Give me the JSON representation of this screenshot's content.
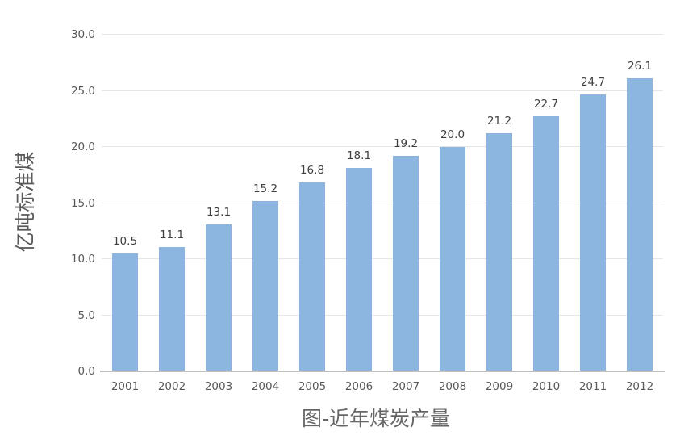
{
  "chart_data": {
    "type": "bar",
    "title": "图-近年煤炭产量",
    "ylabel": "亿吨标准煤",
    "xlabel": "",
    "categories": [
      "2001",
      "2002",
      "2003",
      "2004",
      "2005",
      "2006",
      "2007",
      "2008",
      "2009",
      "2010",
      "2011",
      "2012"
    ],
    "values": [
      10.5,
      11.1,
      13.1,
      15.2,
      16.8,
      18.1,
      19.2,
      20.0,
      21.2,
      22.7,
      24.7,
      26.1
    ],
    "value_labels": [
      "10.5",
      "11.1",
      "13.1",
      "15.2",
      "16.8",
      "18.1",
      "19.2",
      "20.0",
      "21.2",
      "22.7",
      "24.7",
      "26.1"
    ],
    "ylim": [
      0,
      30
    ],
    "ytick_values": [
      0,
      5,
      10,
      15,
      20,
      25,
      30
    ],
    "ytick_labels": [
      "0.0",
      "5.0",
      "10.0",
      "15.0",
      "20.0",
      "25.0",
      "30.0"
    ],
    "grid": true,
    "legend": false,
    "colors": {
      "background": "#ffffff",
      "bar": "#8cb6df",
      "gridline": "#e6e6e6",
      "axis_line": "#c0c0c0",
      "tick_label": "#595959",
      "data_label": "#3f3f3f",
      "title": "#666666"
    }
  }
}
